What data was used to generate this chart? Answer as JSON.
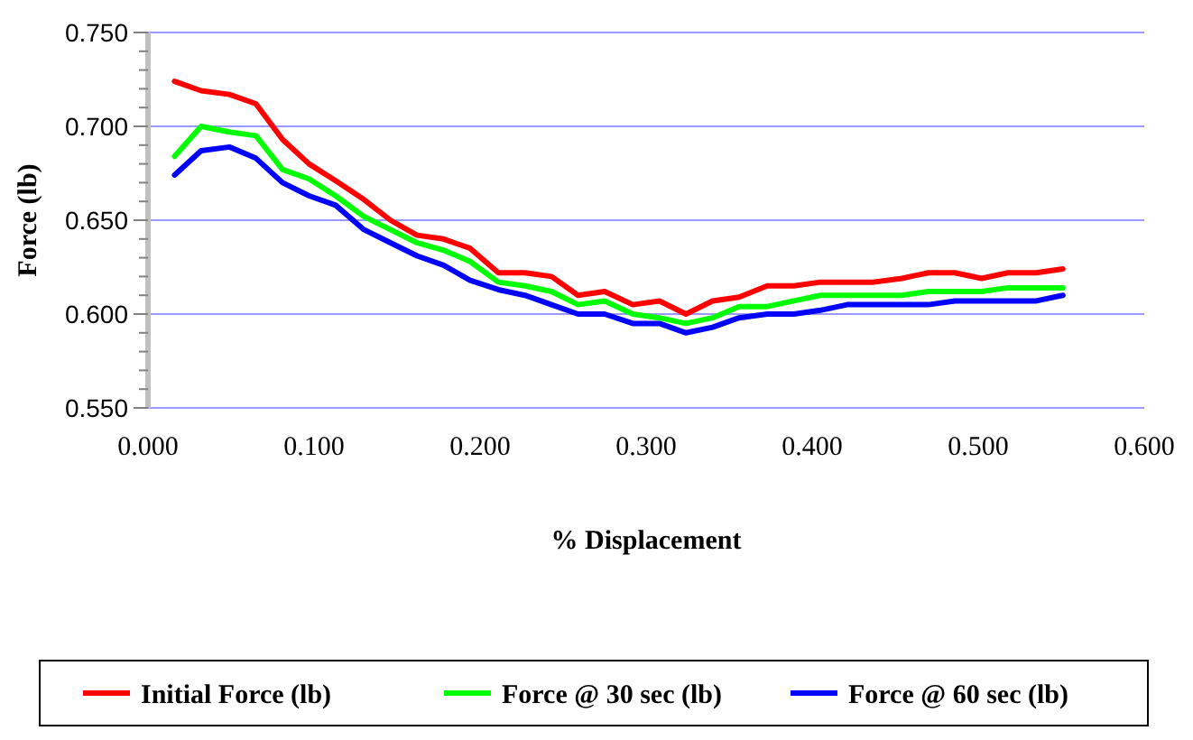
{
  "chart_data": {
    "type": "line",
    "xlabel": "% Displacement",
    "ylabel": "Force (lb)",
    "x": [
      0.016,
      0.032,
      0.049,
      0.065,
      0.081,
      0.097,
      0.113,
      0.13,
      0.146,
      0.162,
      0.178,
      0.194,
      0.211,
      0.227,
      0.243,
      0.259,
      0.275,
      0.292,
      0.308,
      0.324,
      0.34,
      0.356,
      0.373,
      0.389,
      0.405,
      0.421,
      0.437,
      0.454,
      0.47,
      0.486,
      0.502,
      0.518,
      0.535,
      0.551
    ],
    "series": [
      {
        "name": "Initial Force (lb)",
        "color": "#ff0000",
        "values": [
          0.724,
          0.719,
          0.717,
          0.712,
          0.693,
          0.68,
          0.671,
          0.661,
          0.65,
          0.642,
          0.64,
          0.635,
          0.622,
          0.622,
          0.62,
          0.61,
          0.612,
          0.605,
          0.607,
          0.6,
          0.607,
          0.609,
          0.615,
          0.615,
          0.617,
          0.617,
          0.617,
          0.619,
          0.622,
          0.622,
          0.619,
          0.622,
          0.622,
          0.624
        ]
      },
      {
        "name": "Force @ 30 sec (lb)",
        "color": "#00ff00",
        "values": [
          0.684,
          0.7,
          0.697,
          0.695,
          0.677,
          0.672,
          0.663,
          0.652,
          0.645,
          0.638,
          0.634,
          0.628,
          0.617,
          0.615,
          0.612,
          0.605,
          0.607,
          0.6,
          0.598,
          0.595,
          0.598,
          0.604,
          0.604,
          0.607,
          0.61,
          0.61,
          0.61,
          0.61,
          0.612,
          0.612,
          0.612,
          0.614,
          0.614,
          0.614
        ]
      },
      {
        "name": "Force @ 60 sec (lb)",
        "color": "#0000ff",
        "values": [
          0.674,
          0.687,
          0.689,
          0.683,
          0.67,
          0.663,
          0.658,
          0.645,
          0.638,
          0.631,
          0.626,
          0.618,
          0.613,
          0.61,
          0.605,
          0.6,
          0.6,
          0.595,
          0.595,
          0.59,
          0.593,
          0.598,
          0.6,
          0.6,
          0.602,
          0.605,
          0.605,
          0.605,
          0.605,
          0.607,
          0.607,
          0.607,
          0.607,
          0.61
        ]
      }
    ],
    "xlim": [
      0,
      0.6
    ],
    "xticks": [
      {
        "value": 0,
        "label": "0.000"
      },
      {
        "value": 0.1,
        "label": "0.100"
      },
      {
        "value": 0.2,
        "label": "0.200"
      },
      {
        "value": 0.3,
        "label": "0.300"
      },
      {
        "value": 0.4,
        "label": "0.400"
      },
      {
        "value": 0.5,
        "label": "0.500"
      },
      {
        "value": 0.6,
        "label": "0.600"
      }
    ],
    "ylim": [
      0.55,
      0.75
    ],
    "yticks": [
      {
        "value": 0.55,
        "label": "0.550"
      },
      {
        "value": 0.56,
        "label": null
      },
      {
        "value": 0.57,
        "label": null
      },
      {
        "value": 0.58,
        "label": null
      },
      {
        "value": 0.59,
        "label": null
      },
      {
        "value": 0.6,
        "label": "0.600"
      },
      {
        "value": 0.61,
        "label": null
      },
      {
        "value": 0.62,
        "label": null
      },
      {
        "value": 0.63,
        "label": null
      },
      {
        "value": 0.64,
        "label": null
      },
      {
        "value": 0.65,
        "label": "0.650"
      },
      {
        "value": 0.66,
        "label": null
      },
      {
        "value": 0.67,
        "label": null
      },
      {
        "value": 0.68,
        "label": null
      },
      {
        "value": 0.69,
        "label": null
      },
      {
        "value": 0.7,
        "label": "0.700"
      },
      {
        "value": 0.71,
        "label": null
      },
      {
        "value": 0.72,
        "label": null
      },
      {
        "value": 0.73,
        "label": null
      },
      {
        "value": 0.74,
        "label": null
      },
      {
        "value": 0.75,
        "label": "0.750"
      }
    ],
    "grid": "y",
    "legend": "bottom",
    "marker": "none",
    "line_style": "solid"
  }
}
